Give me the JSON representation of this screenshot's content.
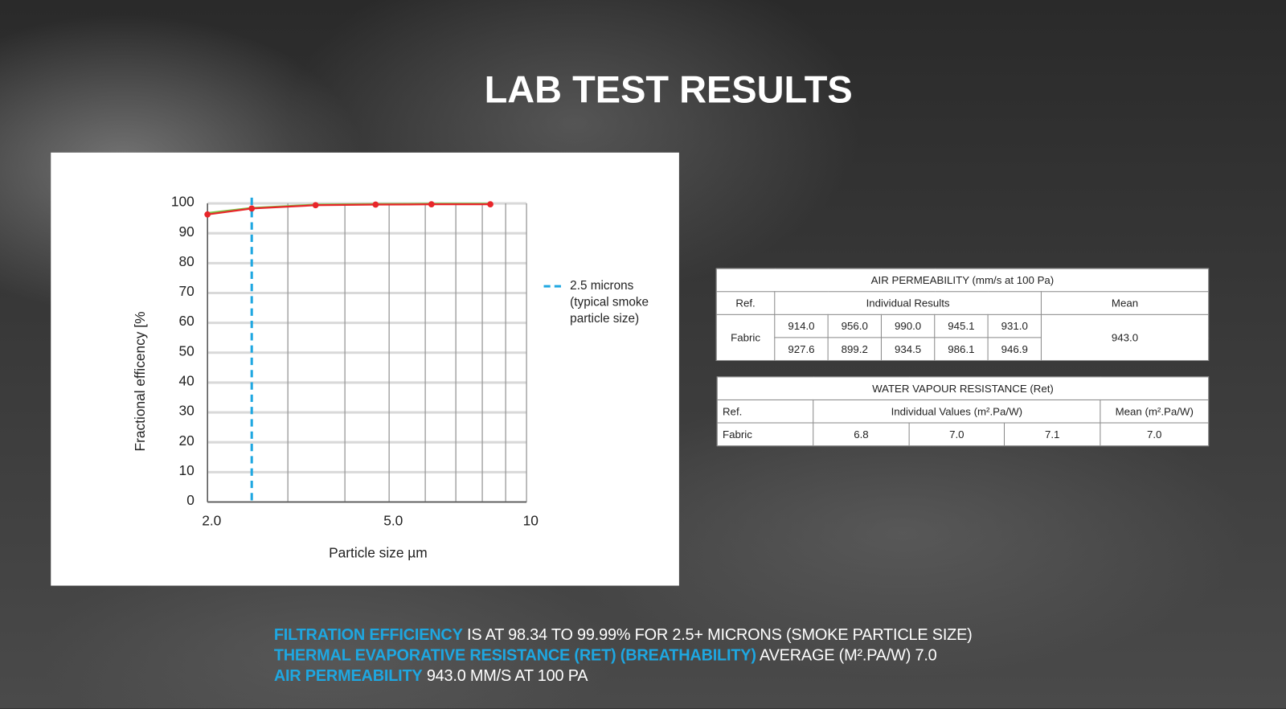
{
  "title": "LAB TEST RESULTS",
  "chart_data": {
    "type": "line",
    "x_scale": "log",
    "xlabel": "Particle size µm",
    "ylabel": "Fractional efficency [%",
    "x": [
      2.0,
      2.5,
      3.45,
      4.67,
      6.19,
      8.33
    ],
    "series": [
      {
        "color": "#7ac143",
        "values": [
          96.8,
          98.5,
          99.6,
          99.8,
          99.9,
          99.9
        ]
      },
      {
        "color": "#e8262a",
        "marker": "circle",
        "values": [
          96.3,
          98.3,
          99.4,
          99.6,
          99.7,
          99.7
        ]
      }
    ],
    "xlim": [
      2,
      10
    ],
    "ylim": [
      0,
      100
    ],
    "xticks": [
      {
        "value": 2,
        "label": "2.0"
      },
      {
        "value": 5,
        "label": "5.0"
      },
      10
    ],
    "x_minor_grid": [
      3,
      4,
      6,
      7,
      8,
      9
    ],
    "yticks": [
      0,
      10,
      20,
      30,
      40,
      50,
      60,
      70,
      80,
      90,
      100
    ],
    "grid": true,
    "reference_line": {
      "x": 2.5,
      "color": "#1ea7e1",
      "style": "dashed",
      "label": "2.5 microns (typical smoke particle size)"
    }
  },
  "air_permeability": {
    "title": "AIR PERMEABILITY (mm/s at 100 Pa)",
    "headers": [
      "Ref.",
      "Individual Results",
      "Mean"
    ],
    "ref": "Fabric",
    "rows": [
      [
        "914.0",
        "956.0",
        "990.0",
        "945.1",
        "931.0"
      ],
      [
        "927.6",
        "899.2",
        "934.5",
        "986.1",
        "946.9"
      ]
    ],
    "mean": "943.0"
  },
  "water_vapour_resistance": {
    "title": "WATER VAPOUR RESISTANCE (Ret)",
    "headers": [
      "Ref.",
      "Individual Values (m².Pa/W)",
      "Mean (m².Pa/W)"
    ],
    "ref": "Fabric",
    "values": [
      "6.8",
      "7.0",
      "7.1"
    ],
    "mean": "7.0"
  },
  "summary": [
    {
      "label": "FILTRATION EFFICIENCY",
      "text": "IS AT 98.34 TO 99.99% FOR 2.5+ MICRONS (SMOKE PARTICLE SIZE)"
    },
    {
      "label": "THERMAL EVAPORATIVE RESISTANCE (RET) (BREATHABILITY)",
      "text": "AVERAGE (M².PA/W) 7.0"
    },
    {
      "label": "AIR PERMEABILITY",
      "text": "943.0 MM/S AT 100 PA"
    }
  ]
}
